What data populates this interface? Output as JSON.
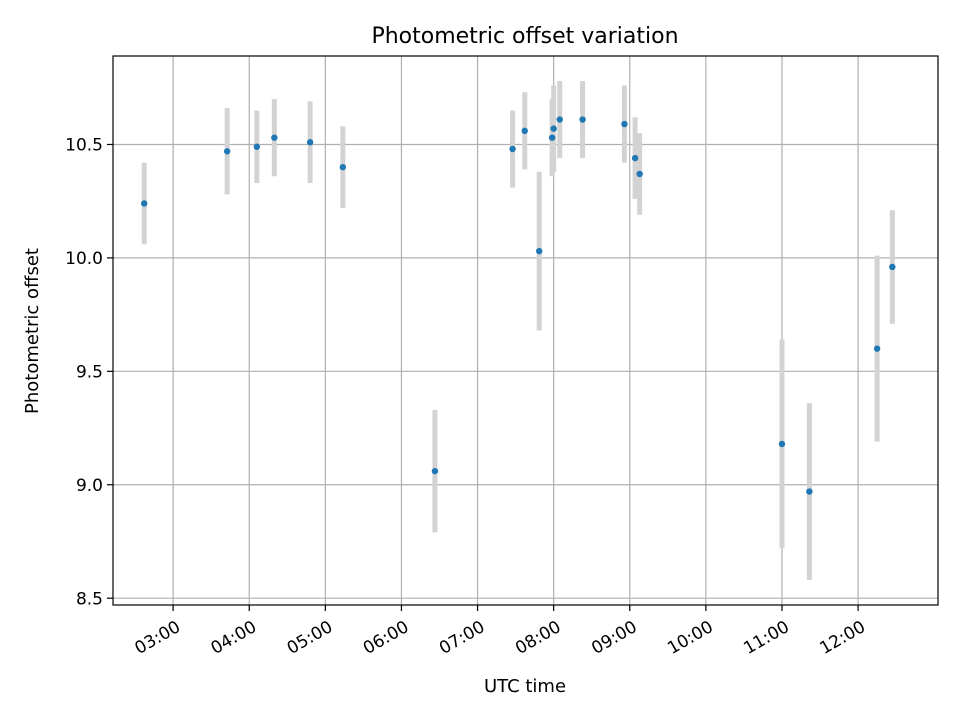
{
  "chart_data": {
    "type": "scatter",
    "title": "Photometric offset variation",
    "xlabel": "UTC time",
    "ylabel": "Photometric offset",
    "x_unit": "hours UTC",
    "xlim": [
      2.21,
      13.05
    ],
    "ylim": [
      8.47,
      10.89
    ],
    "x_ticks": [
      {
        "value": 3,
        "label": "03:00"
      },
      {
        "value": 4,
        "label": "04:00"
      },
      {
        "value": 5,
        "label": "05:00"
      },
      {
        "value": 6,
        "label": "06:00"
      },
      {
        "value": 7,
        "label": "07:00"
      },
      {
        "value": 8,
        "label": "08:00"
      },
      {
        "value": 9,
        "label": "09:00"
      },
      {
        "value": 10,
        "label": "10:00"
      },
      {
        "value": 11,
        "label": "11:00"
      },
      {
        "value": 12,
        "label": "12:00"
      }
    ],
    "y_ticks": [
      {
        "value": 8.5,
        "label": "8.5"
      },
      {
        "value": 9.0,
        "label": "9.0"
      },
      {
        "value": 9.5,
        "label": "9.5"
      },
      {
        "value": 10.0,
        "label": "10.0"
      },
      {
        "value": 10.5,
        "label": "10.5"
      }
    ],
    "grid": true,
    "marker_color": "#1f77b4",
    "errorbar_color": "#d3d3d3",
    "points": [
      {
        "x": 2.62,
        "y": 10.24,
        "err": 0.18
      },
      {
        "x": 3.71,
        "y": 10.47,
        "err": 0.19
      },
      {
        "x": 4.1,
        "y": 10.49,
        "err": 0.16
      },
      {
        "x": 4.33,
        "y": 10.53,
        "err": 0.17
      },
      {
        "x": 4.8,
        "y": 10.51,
        "err": 0.18
      },
      {
        "x": 5.23,
        "y": 10.4,
        "err": 0.18
      },
      {
        "x": 6.44,
        "y": 9.06,
        "err": 0.27
      },
      {
        "x": 7.46,
        "y": 10.48,
        "err": 0.17
      },
      {
        "x": 7.62,
        "y": 10.56,
        "err": 0.17
      },
      {
        "x": 7.81,
        "y": 10.03,
        "err": 0.35
      },
      {
        "x": 7.98,
        "y": 10.53,
        "err": 0.17
      },
      {
        "x": 8.0,
        "y": 10.57,
        "err": 0.19
      },
      {
        "x": 8.08,
        "y": 10.61,
        "err": 0.17
      },
      {
        "x": 8.38,
        "y": 10.61,
        "err": 0.17
      },
      {
        "x": 8.93,
        "y": 10.59,
        "err": 0.17
      },
      {
        "x": 9.07,
        "y": 10.44,
        "err": 0.18
      },
      {
        "x": 9.13,
        "y": 10.37,
        "err": 0.18
      },
      {
        "x": 11.0,
        "y": 9.18,
        "err": 0.46
      },
      {
        "x": 11.36,
        "y": 8.97,
        "err": 0.39
      },
      {
        "x": 12.25,
        "y": 9.6,
        "err": 0.41
      },
      {
        "x": 12.45,
        "y": 9.96,
        "err": 0.25
      }
    ]
  }
}
